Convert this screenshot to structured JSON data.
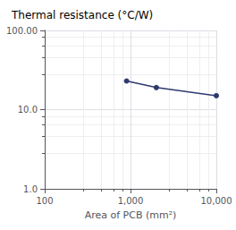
{
  "chart_data": {
    "type": "line",
    "title": "Thermal resistance (°C/W)",
    "xlabel": "Area of PCB (mm²)",
    "x": [
      900,
      2000,
      10000
    ],
    "values": [
      23,
      19,
      15
    ],
    "color": "#2e3a6e",
    "marker": "circle",
    "log": true,
    "grid": true,
    "xlim": [
      100,
      10000
    ],
    "xticks": [
      100,
      {
        "value": 1000,
        "label": "1,000"
      },
      {
        "value": 10000,
        "label": "10,000"
      }
    ],
    "ylim": [
      1.0,
      100.0
    ],
    "yticks": [
      {
        "value": 1.0,
        "label": "1.0"
      },
      {
        "value": 10.0,
        "label": "10.0"
      },
      {
        "value": 100.0,
        "label": "100.00"
      }
    ]
  }
}
